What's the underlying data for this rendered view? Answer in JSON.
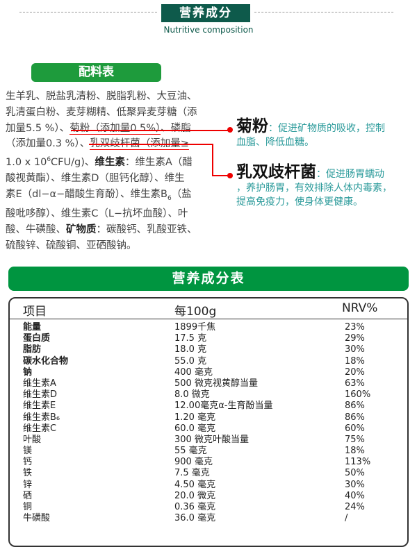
{
  "header": {
    "title": "营养成分",
    "subtitle": "Nutritive composition"
  },
  "ingredients": {
    "title": "配料表",
    "lines": [
      [
        {
          "t": "生羊乳、脱盐乳清粉、脱脂乳粉、大豆油、"
        }
      ],
      [
        {
          "t": "乳清蛋白粉、麦芽糊精、低聚异麦芽糖（添"
        }
      ],
      [
        {
          "t": "加量5.5 %）、"
        },
        {
          "t": "菊粉（添加量0.5%）",
          "u": 1
        },
        {
          "t": "、磷脂"
        }
      ],
      [
        {
          "t": "（添加量0.3 %）、"
        },
        {
          "t": "乳双歧杆菌（添加量≥",
          "u": 1
        }
      ],
      [
        {
          "t": "1.0 x 10"
        },
        {
          "t": "6",
          "sup": 1
        },
        {
          "t": "CFU/g)、"
        },
        {
          "t": "维生素",
          "b": 1
        },
        {
          "t": "：维生素A（醋"
        }
      ],
      [
        {
          "t": "酸视黄酯）、维生素D（胆钙化醇）、维生"
        }
      ],
      [
        {
          "t": "素E（dl−α−醋酸生育酚）、维生素B"
        },
        {
          "t": "6",
          "sub": 1
        },
        {
          "t": "（盐"
        }
      ],
      [
        {
          "t": "酸吡哆醇）、维生素C（L−抗坏血酸）、叶"
        }
      ],
      [
        {
          "t": "酸、牛磺酸、"
        },
        {
          "t": "矿物质",
          "b": 1
        },
        {
          "t": "：碳酸钙、乳酸亚铁、"
        }
      ],
      [
        {
          "t": "硫酸锌、硫酸铜、亚硒酸钠。"
        }
      ]
    ]
  },
  "callouts": [
    {
      "name": "菊粉",
      "desc1": "：促进矿物质的吸收，控制",
      "desc2": "血脂、降低血糖。"
    },
    {
      "name": "乳双歧杆菌",
      "desc1": "：促进肠胃蠕动",
      "desc2": "，养护肠胃，有效排除人体内毒素，",
      "desc3": "提高免疫力，使身体更健康。"
    }
  ],
  "table": {
    "title": "营养成分表",
    "headers": [
      "项目",
      "每100g",
      "NRV%"
    ],
    "rows": [
      {
        "item": "能量",
        "value": "1899千焦",
        "nrv": "23%",
        "bold": true
      },
      {
        "item": "蛋白质",
        "value": "17.5 克",
        "nrv": "29%",
        "bold": true
      },
      {
        "item": "脂肪",
        "value": "18.0 克",
        "nrv": "30%",
        "bold": true
      },
      {
        "item": "碳水化合物",
        "value": "55.0 克",
        "nrv": "18%",
        "bold": true
      },
      {
        "item": "钠",
        "value": "400 毫克",
        "nrv": "20%",
        "bold": true
      },
      {
        "item": "维生素A",
        "value": "500 微克视黄醇当量",
        "nrv": "63%"
      },
      {
        "item": "维生素D",
        "value": "8.0 微克",
        "nrv": "160%"
      },
      {
        "item": "维生素E",
        "value": "12.00毫克α-生育酚当量",
        "nrv": "86%"
      },
      {
        "item": "维生素B₆",
        "value": "1.20 毫克",
        "nrv": "86%"
      },
      {
        "item": "维生素C",
        "value": "60.0 毫克",
        "nrv": "60%"
      },
      {
        "item": "叶酸",
        "value": "300 微克叶酸当量",
        "nrv": "75%"
      },
      {
        "item": "镁",
        "value": "55 毫克",
        "nrv": "18%"
      },
      {
        "item": "钙",
        "value": "900 毫克",
        "nrv": "113%"
      },
      {
        "item": "铁",
        "value": "7.5 毫克",
        "nrv": "50%"
      },
      {
        "item": "锌",
        "value": "4.50 毫克",
        "nrv": "30%"
      },
      {
        "item": "硒",
        "value": "20.0 微克",
        "nrv": "40%"
      },
      {
        "item": "铜",
        "value": "0.36 毫克",
        "nrv": "24%"
      },
      {
        "item": "牛磺酸",
        "value": "36.0 毫克",
        "nrv": "/"
      }
    ]
  },
  "colors": {
    "header_bg": "#0e5a4b",
    "green": "#009540",
    "callout_text": "#2a9a9a",
    "line_red": "#e00000"
  }
}
